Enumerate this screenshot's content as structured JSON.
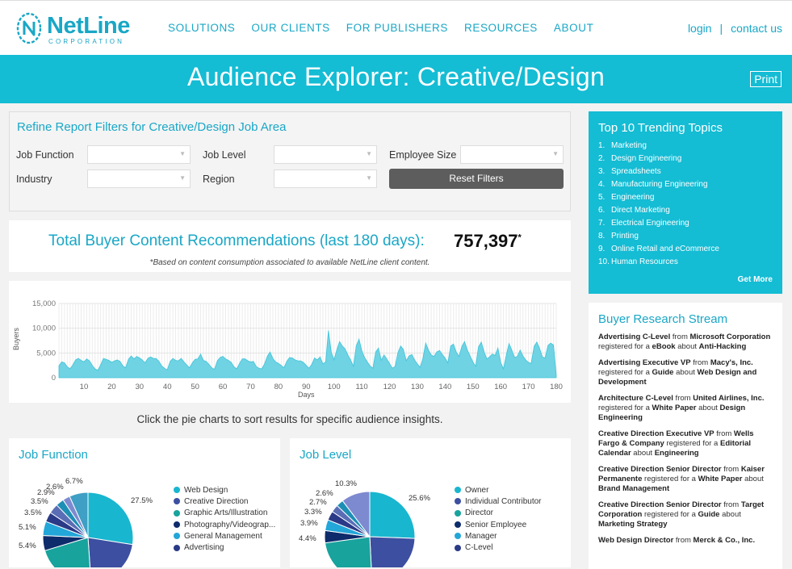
{
  "brand": {
    "name": "NetLine",
    "sub": "CORPORATION"
  },
  "nav": [
    "SOLUTIONS",
    "OUR CLIENTS",
    "FOR PUBLISHERS",
    "RESOURCES",
    "ABOUT"
  ],
  "util": {
    "login": "login",
    "sep": "|",
    "contact": "contact us"
  },
  "banner": {
    "title": "Audience Explorer: Creative/Design",
    "print": "Print"
  },
  "filters": {
    "title": "Refine Report Filters for Creative/Design Job Area",
    "job_function": "Job Function",
    "job_level": "Job Level",
    "employee_size": "Employee Size",
    "industry": "Industry",
    "region": "Region",
    "reset": "Reset Filters"
  },
  "total": {
    "label": "Total Buyer Content Recommendations (last 180 days):",
    "value": "757,397",
    "star": "*",
    "note": "*Based on content consumption associated to available NetLine client content."
  },
  "chart_data": {
    "type": "area",
    "xlabel": "Days",
    "ylabel": "Buyers",
    "xlim": [
      1,
      180
    ],
    "ylim": [
      0,
      15000
    ],
    "xticks": [
      10,
      20,
      30,
      40,
      50,
      60,
      70,
      80,
      90,
      100,
      110,
      120,
      130,
      140,
      150,
      160,
      170,
      180
    ],
    "yticks": [
      "0",
      "5,000",
      "10,000",
      "15,000"
    ],
    "x": [
      1,
      2,
      3,
      4,
      5,
      6,
      7,
      8,
      9,
      10,
      11,
      12,
      13,
      14,
      15,
      16,
      17,
      18,
      19,
      20,
      21,
      22,
      23,
      24,
      25,
      26,
      27,
      28,
      29,
      30,
      31,
      32,
      33,
      34,
      35,
      36,
      37,
      38,
      39,
      40,
      41,
      42,
      43,
      44,
      45,
      46,
      47,
      48,
      49,
      50,
      51,
      52,
      53,
      54,
      55,
      56,
      57,
      58,
      59,
      60,
      61,
      62,
      63,
      64,
      65,
      66,
      67,
      68,
      69,
      70,
      71,
      72,
      73,
      74,
      75,
      76,
      77,
      78,
      79,
      80,
      81,
      82,
      83,
      84,
      85,
      86,
      87,
      88,
      89,
      90,
      91,
      92,
      93,
      94,
      95,
      96,
      97,
      98,
      99,
      100,
      101,
      102,
      103,
      104,
      105,
      106,
      107,
      108,
      109,
      110,
      111,
      112,
      113,
      114,
      115,
      116,
      117,
      118,
      119,
      120,
      121,
      122,
      123,
      124,
      125,
      126,
      127,
      128,
      129,
      130,
      131,
      132,
      133,
      134,
      135,
      136,
      137,
      138,
      139,
      140,
      141,
      142,
      143,
      144,
      145,
      146,
      147,
      148,
      149,
      150,
      151,
      152,
      153,
      154,
      155,
      156,
      157,
      158,
      159,
      160,
      161,
      162,
      163,
      164,
      165,
      166,
      167,
      168,
      169,
      170,
      171,
      172,
      173,
      174,
      175,
      176,
      177,
      178,
      179,
      180
    ],
    "series": [
      {
        "values": [
          2400,
          3200,
          3000,
          2200,
          1800,
          2600,
          3600,
          3900,
          3500,
          3200,
          3800,
          3400,
          2500,
          1800,
          1500,
          2600,
          3900,
          3700,
          3500,
          3100,
          3400,
          3600,
          3300,
          2400,
          2000,
          3700,
          4400,
          3800,
          4300,
          4000,
          3600,
          3000,
          3900,
          4200,
          3900,
          3900,
          3300,
          2400,
          1900,
          1600,
          3300,
          3900,
          3500,
          3400,
          3900,
          3200,
          2600,
          2000,
          3000,
          3700,
          3800,
          4800,
          3500,
          3300,
          2700,
          2000,
          1700,
          3400,
          4100,
          4300,
          3800,
          3500,
          3100,
          2200,
          1800,
          2900,
          3800,
          3800,
          3400,
          3200,
          3300,
          2300,
          1900,
          1800,
          2800,
          4300,
          5200,
          3900,
          3200,
          2900,
          2500,
          2000,
          3300,
          4100,
          4000,
          3600,
          3400,
          3400,
          3100,
          2500,
          1900,
          2700,
          4000,
          3600,
          4200,
          2800,
          3200,
          9500,
          5200,
          3600,
          5600,
          7300,
          6400,
          5800,
          4600,
          3600,
          2300,
          6400,
          7800,
          5500,
          4100,
          3200,
          2400,
          1900,
          5200,
          6000,
          3500,
          4600,
          3800,
          2900,
          1900,
          2300,
          5000,
          6400,
          5700,
          3400,
          4400,
          4700,
          3600,
          2800,
          2100,
          3900,
          7000,
          5600,
          4600,
          4300,
          5200,
          5500,
          4700,
          4000,
          3000,
          6400,
          6800,
          5200,
          4300,
          6300,
          7300,
          5600,
          4400,
          3200,
          2300,
          6200,
          7200,
          5300,
          3800,
          4200,
          4800,
          4500,
          6000,
          3100,
          1800,
          4600,
          6900,
          5600,
          4100,
          4300,
          5600,
          4400,
          3600,
          3100,
          2900,
          6300,
          7200,
          5900,
          4200,
          4000,
          6500,
          7000,
          6600,
          500
        ]
      }
    ]
  },
  "pie_hint": "Click the pie charts to sort results for specific audience insights.",
  "job_function": {
    "title": "Job Function",
    "pcts": [
      "6.7%",
      "2.6%",
      "2.9%",
      "3.5%",
      "3.5%",
      "5.1%",
      "5.4%",
      "27.5%"
    ],
    "legend": [
      {
        "label": "Web Design",
        "color": "#19b6cf"
      },
      {
        "label": "Creative Direction",
        "color": "#3c4fa0"
      },
      {
        "label": "Graphic Arts/Illustration",
        "color": "#18a39d"
      },
      {
        "label": "Photography/Videograp...",
        "color": "#0e2c6b"
      },
      {
        "label": "General Management",
        "color": "#23a6d8"
      },
      {
        "label": "Advertising",
        "color": "#2b3a87"
      }
    ]
  },
  "job_level": {
    "title": "Job Level",
    "pcts": [
      "10.3%",
      "2.6%",
      "2.7%",
      "3.3%",
      "3.9%",
      "4.4%",
      "25.6%"
    ],
    "legend": [
      {
        "label": "Owner",
        "color": "#19b6cf"
      },
      {
        "label": "Individual Contributor",
        "color": "#3c4fa0"
      },
      {
        "label": "Director",
        "color": "#18a39d"
      },
      {
        "label": "Senior Employee",
        "color": "#0e2c6b"
      },
      {
        "label": "Manager",
        "color": "#23a6d8"
      },
      {
        "label": "C-Level",
        "color": "#2b3a87"
      }
    ]
  },
  "trending": {
    "title": "Top 10 Trending Topics",
    "items": [
      "Marketing",
      "Design Engineering",
      "Spreadsheets",
      "Manufacturing Engineering",
      "Engineering",
      "Direct Marketing",
      "Electrical Engineering",
      "Printing",
      "Online Retail and eCommerce",
      "Human Resources"
    ],
    "nums": [
      "1.",
      "2.",
      "3.",
      "4.",
      "5.",
      "6.",
      "7.",
      "8.",
      "9.",
      "10."
    ],
    "more": "Get More"
  },
  "stream": {
    "title": "Buyer Research Stream",
    "items": [
      {
        "who": "Advertising C-Level",
        "from": "from",
        "company": "Microsoft Corporation",
        "reg": "registered for a",
        "type": "eBook",
        "about": "about",
        "topic": "Anti-Hacking"
      },
      {
        "who": "Advertising Executive VP",
        "from": "from",
        "company": "Macy's, Inc.",
        "reg": "registered for a",
        "type": "Guide",
        "about": "about",
        "topic": "Web Design and Development"
      },
      {
        "who": "Architecture C-Level",
        "from": "from",
        "company": "United Airlines, Inc.",
        "reg": "registered for a",
        "type": "White Paper",
        "about": "about",
        "topic": "Design Engineering"
      },
      {
        "who": "Creative Direction Executive VP",
        "from": "from",
        "company": "Wells Fargo & Company",
        "reg": "registered for a",
        "type": "Editorial Calendar",
        "about": "about",
        "topic": "Engineering"
      },
      {
        "who": "Creative Direction Senior Director",
        "from": "from",
        "company": "Kaiser Permanente",
        "reg": "registered for a",
        "type": "White Paper",
        "about": "about",
        "topic": "Brand Management"
      },
      {
        "who": "Creative Direction Senior Director",
        "from": "from",
        "company": "Target Corporation",
        "reg": "registered for a",
        "type": "Guide",
        "about": "about",
        "topic": "Marketing Strategy"
      },
      {
        "who": "Web Design Director",
        "from": "from",
        "company": "Merck & Co., Inc.",
        "reg": "",
        "type": "",
        "about": "",
        "topic": ""
      }
    ]
  }
}
